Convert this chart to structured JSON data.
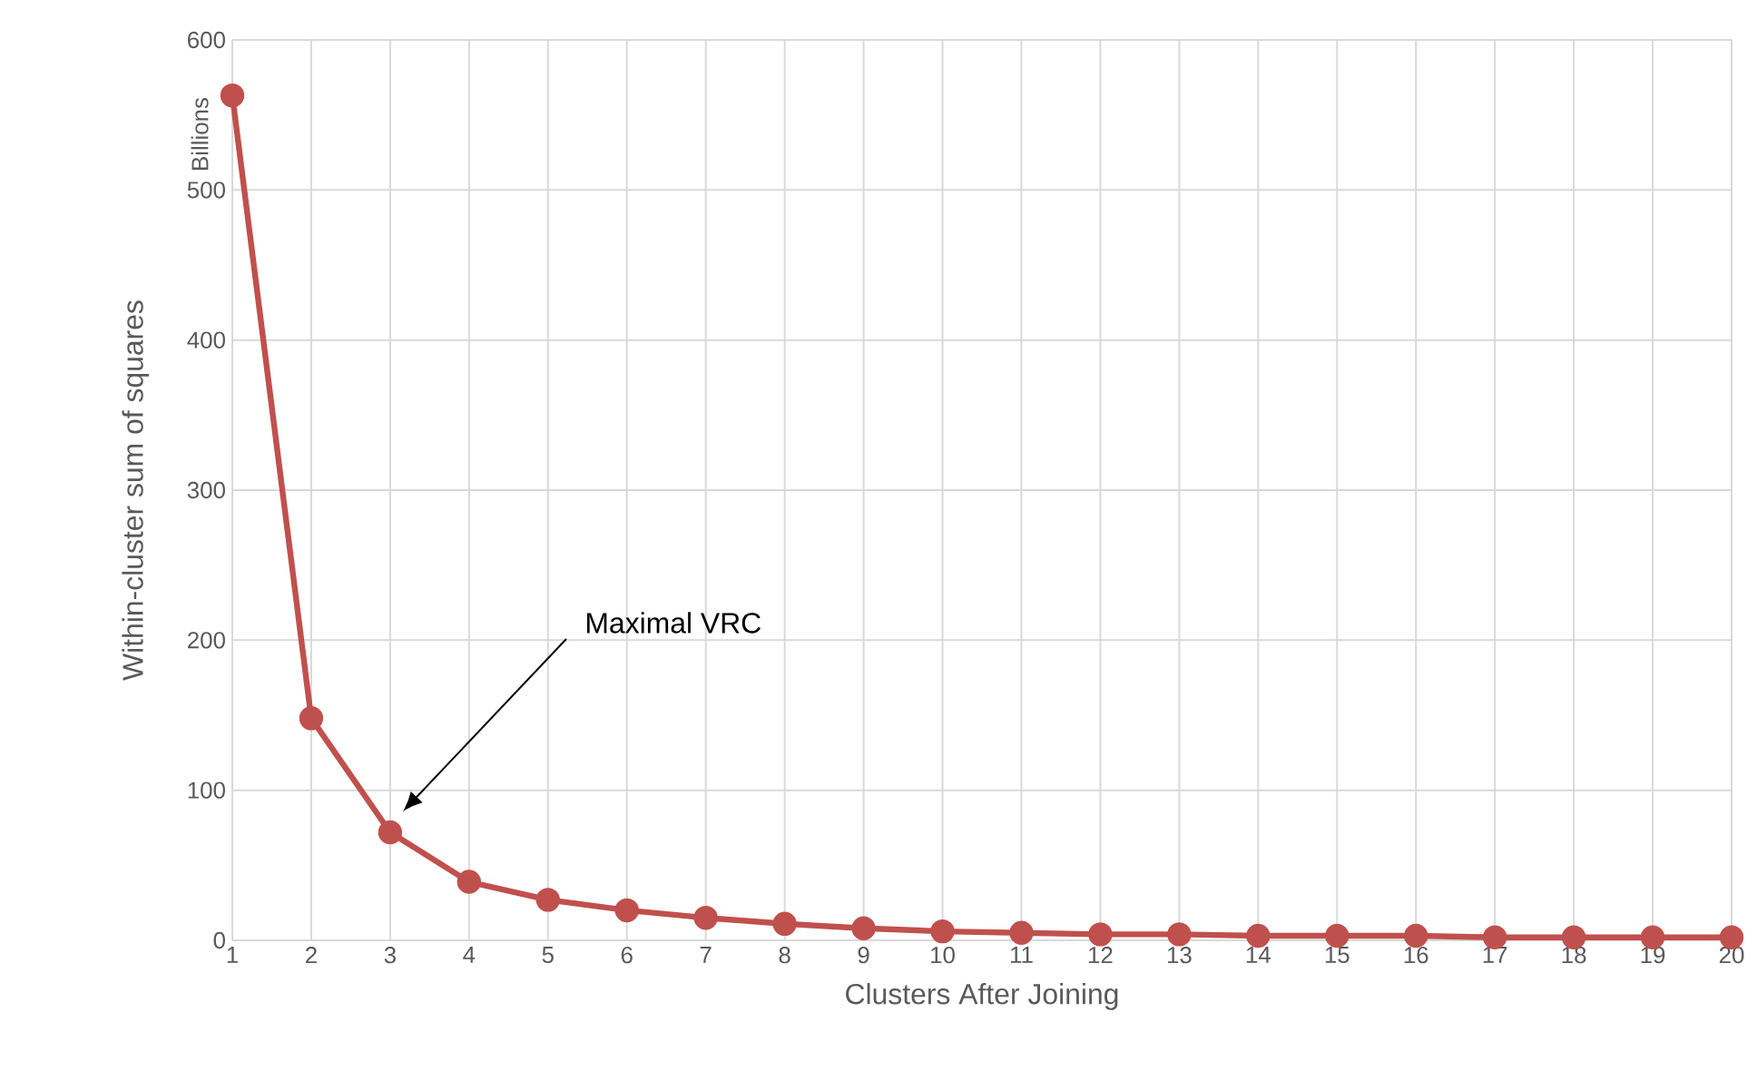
{
  "chart_data": {
    "type": "line",
    "xlabel": "Clusters After Joining",
    "ylabel": "Within-cluster sum of squares",
    "annotations": [
      "Billions",
      "Maximal VRC"
    ],
    "x": [
      1,
      2,
      3,
      4,
      5,
      6,
      7,
      8,
      9,
      10,
      11,
      12,
      13,
      14,
      15,
      16,
      17,
      18,
      19,
      20
    ],
    "values": [
      563,
      148,
      72,
      39,
      27,
      20,
      15,
      11,
      8,
      6,
      5,
      4,
      4,
      3,
      3,
      3,
      2,
      2,
      2,
      2
    ],
    "color": "#c0504d",
    "xlim": [
      1,
      20
    ],
    "xticks": [
      1,
      2,
      3,
      4,
      5,
      6,
      7,
      8,
      9,
      10,
      11,
      12,
      13,
      14,
      15,
      16,
      17,
      18,
      19,
      20
    ],
    "ylim": [
      0,
      600
    ],
    "yticks": [
      0,
      100,
      200,
      300,
      400,
      500,
      600
    ],
    "grid": true,
    "marker": "circle",
    "line_style": "solid"
  }
}
